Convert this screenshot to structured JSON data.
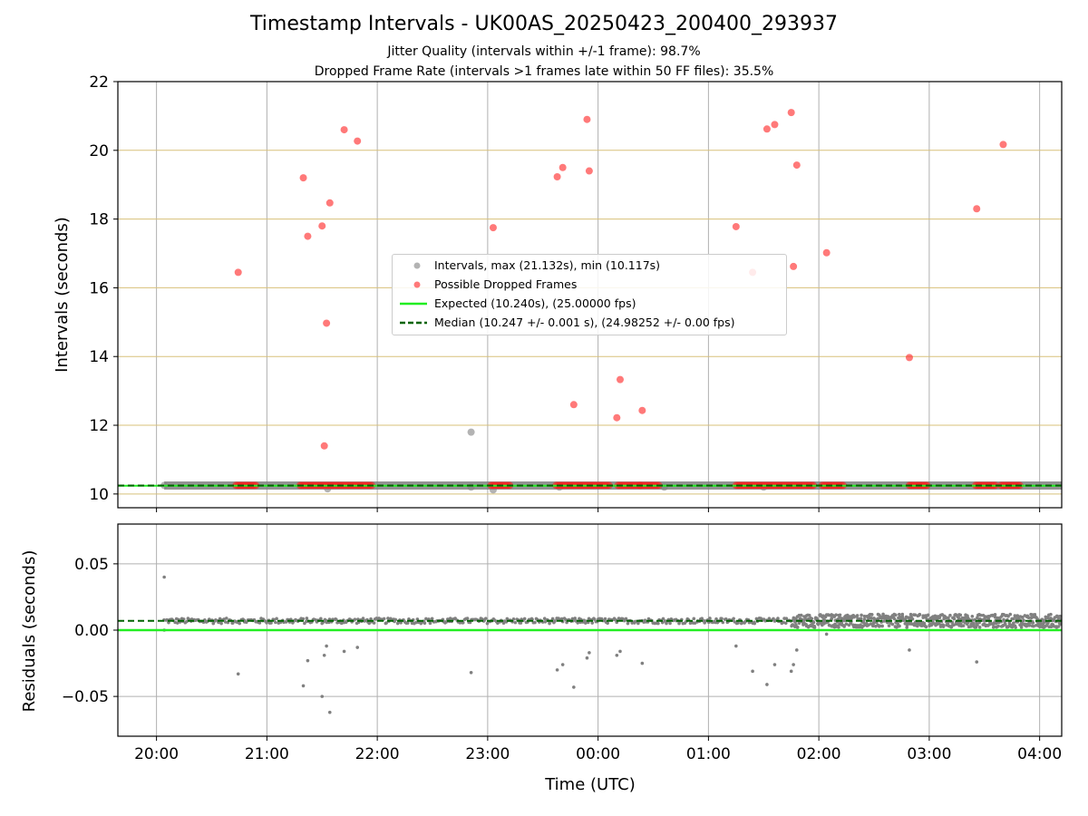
{
  "title": "Timestamp Intervals - UK00AS_20250423_200400_293937",
  "subtitle_1": "Jitter Quality (intervals within +/-1 frame): 98.7%",
  "subtitle_2": "Dropped Frame Rate (intervals >1 frames late within 50 FF files): 35.5%",
  "colors": {
    "intervals": "#808080",
    "dropped": "#ff2020",
    "expected": "#22ee22",
    "median": "#006400",
    "upper_grid": "#d8c07a",
    "grid": "#b0b0b0"
  },
  "chart_data": [
    {
      "type": "scatter",
      "panel": "intervals",
      "ylabel": "Intervals (seconds)",
      "xlabel": "",
      "x_ticks": [
        "20:00",
        "21:00",
        "22:00",
        "23:00",
        "00:00",
        "01:00",
        "02:00",
        "03:00",
        "04:00"
      ],
      "x_unit": "hours since 20:00 UTC",
      "xlim": [
        -0.35,
        8.2
      ],
      "ylim": [
        9.6,
        22
      ],
      "y_ticks": [
        10,
        12,
        14,
        16,
        18,
        20,
        22
      ],
      "legend_position": "center",
      "legend": [
        "Intervals, max (21.132s), min (10.117s)",
        "Possible Dropped Frames",
        "Expected (10.240s), (25.00000 fps)",
        "Median (10.247 +/- 0.001 s), (24.98252 +/- 0.00 fps)"
      ],
      "expected_line": 10.24,
      "median_line": 10.247,
      "interval_baseline": {
        "x_start": 0.07,
        "x_end": 8.2,
        "value": 10.247
      },
      "interval_outliers": [
        {
          "x": 0.07,
          "y": 10.25
        },
        {
          "x": 1.55,
          "y": 10.15
        },
        {
          "x": 2.85,
          "y": 11.8
        },
        {
          "x": 2.85,
          "y": 10.2
        },
        {
          "x": 3.05,
          "y": 10.12
        },
        {
          "x": 3.65,
          "y": 10.2
        },
        {
          "x": 4.6,
          "y": 10.2
        },
        {
          "x": 5.5,
          "y": 10.2
        }
      ],
      "dropped_clusters": [
        [
          0.72,
          0.9
        ],
        [
          1.3,
          1.95
        ],
        [
          3.03,
          3.2
        ],
        [
          3.62,
          4.1
        ],
        [
          4.18,
          4.38
        ],
        [
          4.38,
          4.55
        ],
        [
          5.25,
          5.95
        ],
        [
          6.03,
          6.22
        ],
        [
          6.82,
          6.98
        ],
        [
          7.42,
          7.6
        ],
        [
          7.65,
          7.82
        ]
      ],
      "dropped_values": 10.25,
      "dropped_points": [
        {
          "x": 0.74,
          "y": 16.45
        },
        {
          "x": 1.33,
          "y": 19.2
        },
        {
          "x": 1.37,
          "y": 17.5
        },
        {
          "x": 1.5,
          "y": 17.8
        },
        {
          "x": 1.52,
          "y": 11.4
        },
        {
          "x": 1.54,
          "y": 14.97
        },
        {
          "x": 1.57,
          "y": 18.47
        },
        {
          "x": 1.7,
          "y": 20.6
        },
        {
          "x": 1.82,
          "y": 20.27
        },
        {
          "x": 3.05,
          "y": 17.75
        },
        {
          "x": 3.63,
          "y": 19.23
        },
        {
          "x": 3.68,
          "y": 19.5
        },
        {
          "x": 3.78,
          "y": 12.6
        },
        {
          "x": 3.9,
          "y": 20.9
        },
        {
          "x": 3.92,
          "y": 19.4
        },
        {
          "x": 4.17,
          "y": 12.22
        },
        {
          "x": 4.2,
          "y": 13.33
        },
        {
          "x": 4.4,
          "y": 12.43
        },
        {
          "x": 5.25,
          "y": 17.78
        },
        {
          "x": 5.4,
          "y": 16.45
        },
        {
          "x": 5.53,
          "y": 20.62
        },
        {
          "x": 5.6,
          "y": 20.75
        },
        {
          "x": 5.75,
          "y": 21.1
        },
        {
          "x": 5.77,
          "y": 16.62
        },
        {
          "x": 5.8,
          "y": 19.57
        },
        {
          "x": 6.07,
          "y": 17.02
        },
        {
          "x": 6.82,
          "y": 13.97
        },
        {
          "x": 7.43,
          "y": 18.3
        },
        {
          "x": 7.67,
          "y": 20.17
        }
      ]
    },
    {
      "type": "scatter",
      "panel": "residuals",
      "ylabel": "Residuals (seconds)",
      "xlabel": "Time (UTC)",
      "x_ticks": [
        "20:00",
        "21:00",
        "22:00",
        "23:00",
        "00:00",
        "01:00",
        "02:00",
        "03:00",
        "04:00"
      ],
      "xlim": [
        -0.35,
        8.2
      ],
      "ylim": [
        -0.08,
        0.08
      ],
      "y_ticks": [
        "0.05",
        "0.00",
        "−0.05"
      ],
      "y_tick_values": [
        0.05,
        0.0,
        -0.05
      ],
      "expected_line": 0.0,
      "median_line": 0.007,
      "residual_band": {
        "x_start": 0.07,
        "x_end": 8.2,
        "value": 0.007,
        "spread_early": 0.002,
        "spread_late": 0.005,
        "late_start": 5.75
      },
      "points": [
        {
          "x": 0.07,
          "y": 0.04
        },
        {
          "x": 0.07,
          "y": 0.0
        },
        {
          "x": 0.74,
          "y": -0.033
        },
        {
          "x": 1.33,
          "y": -0.042
        },
        {
          "x": 1.37,
          "y": -0.023
        },
        {
          "x": 1.5,
          "y": -0.05
        },
        {
          "x": 1.52,
          "y": -0.019
        },
        {
          "x": 1.54,
          "y": -0.012
        },
        {
          "x": 1.57,
          "y": -0.062
        },
        {
          "x": 1.7,
          "y": -0.016
        },
        {
          "x": 1.82,
          "y": -0.013
        },
        {
          "x": 2.85,
          "y": -0.032
        },
        {
          "x": 3.63,
          "y": -0.03
        },
        {
          "x": 3.68,
          "y": -0.026
        },
        {
          "x": 3.78,
          "y": -0.043
        },
        {
          "x": 3.9,
          "y": -0.021
        },
        {
          "x": 3.92,
          "y": -0.017
        },
        {
          "x": 4.17,
          "y": -0.019
        },
        {
          "x": 4.2,
          "y": -0.016
        },
        {
          "x": 4.4,
          "y": -0.025
        },
        {
          "x": 5.25,
          "y": -0.012
        },
        {
          "x": 5.4,
          "y": -0.031
        },
        {
          "x": 5.53,
          "y": -0.041
        },
        {
          "x": 5.6,
          "y": -0.026
        },
        {
          "x": 5.75,
          "y": -0.031
        },
        {
          "x": 5.77,
          "y": -0.026
        },
        {
          "x": 5.8,
          "y": -0.015
        },
        {
          "x": 6.07,
          "y": -0.003
        },
        {
          "x": 6.82,
          "y": -0.015
        },
        {
          "x": 7.43,
          "y": -0.024
        }
      ]
    }
  ]
}
